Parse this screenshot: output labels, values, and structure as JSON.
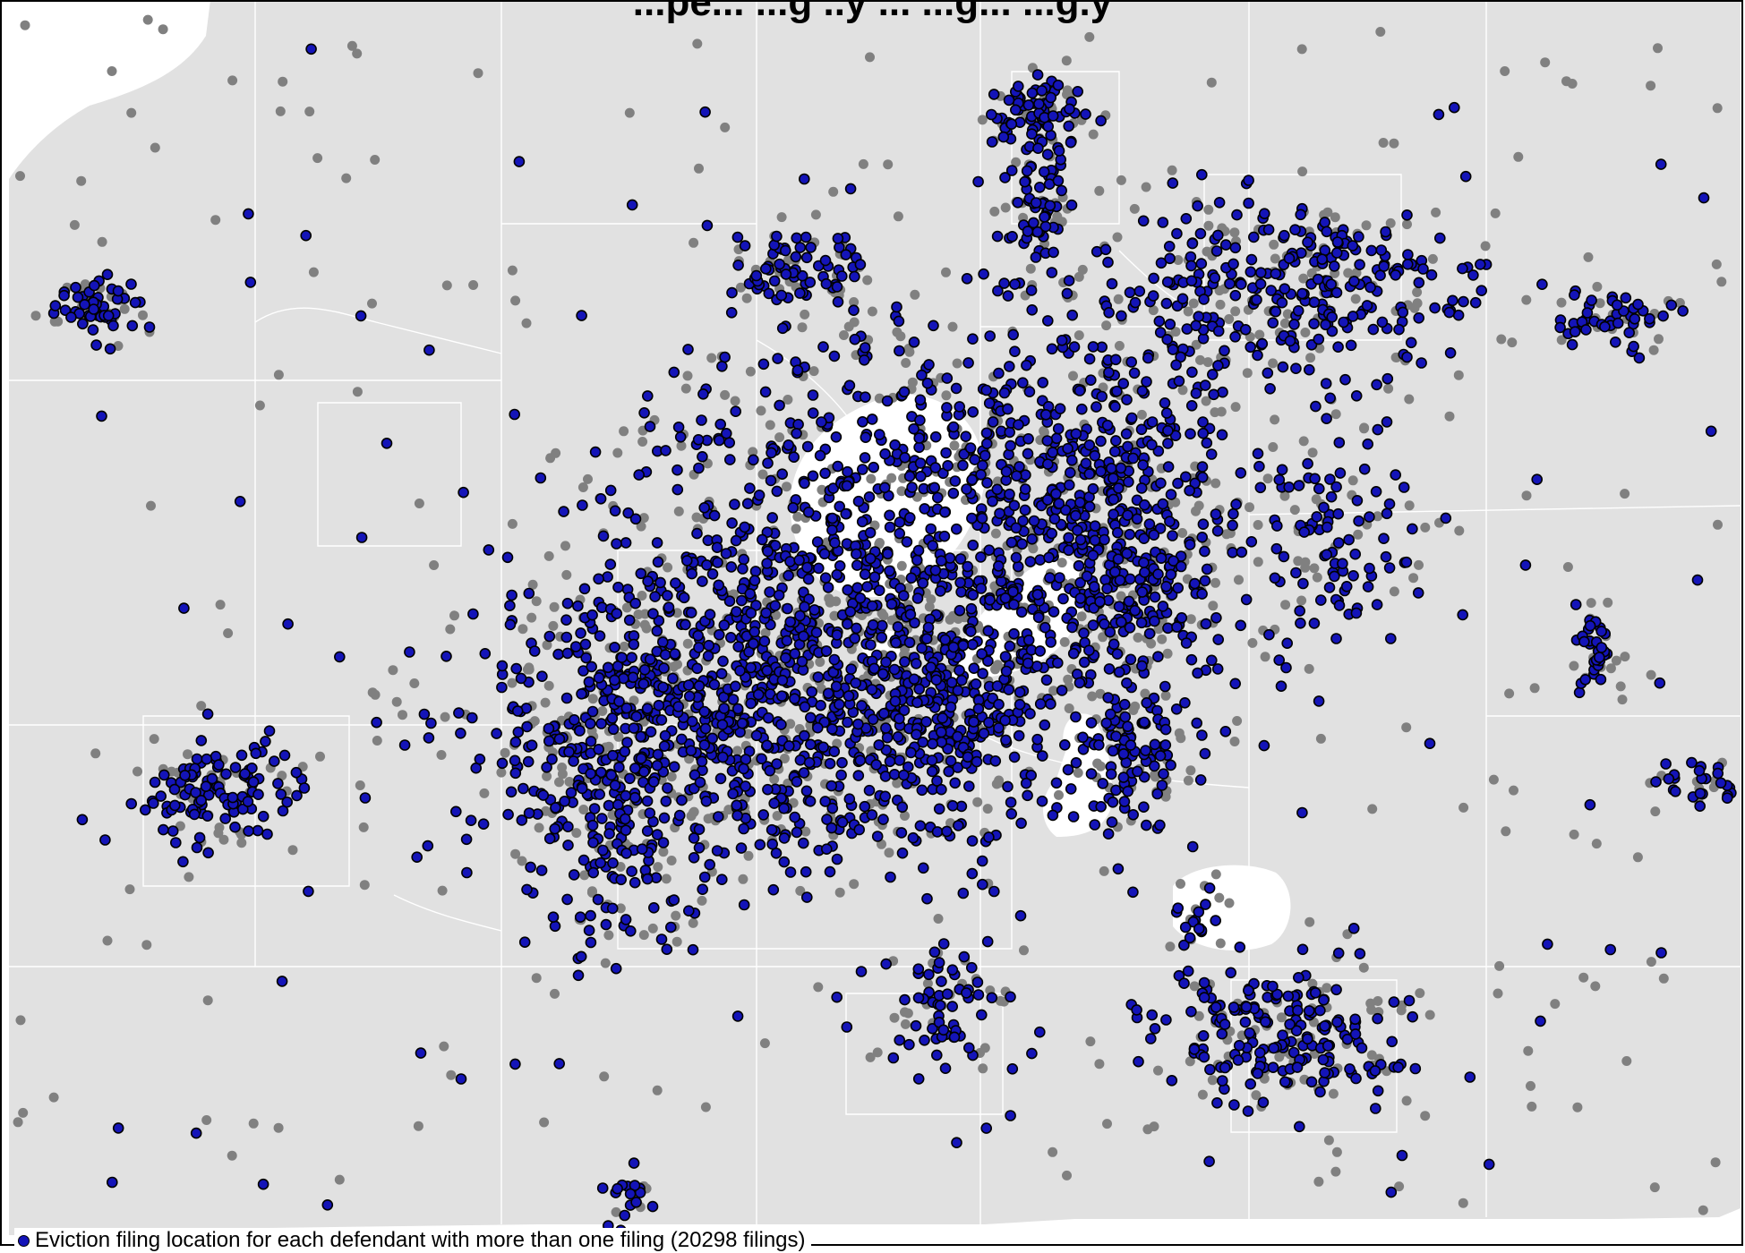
{
  "map": {
    "title": "...pe... ...g ..y ... ...g... ...g.y",
    "legend_label": "Eviction filing location for each defendant with more than one filing (20298 filings)",
    "colors": {
      "background": "#ffffff",
      "land": "#e1e1e1",
      "boundary": "#ffffff",
      "water": "#ffffff",
      "border": "#000000",
      "repeat_filing_point": "#1414b8",
      "repeat_filing_outline": "#000000",
      "other_filing_point": "#808080"
    }
  }
}
